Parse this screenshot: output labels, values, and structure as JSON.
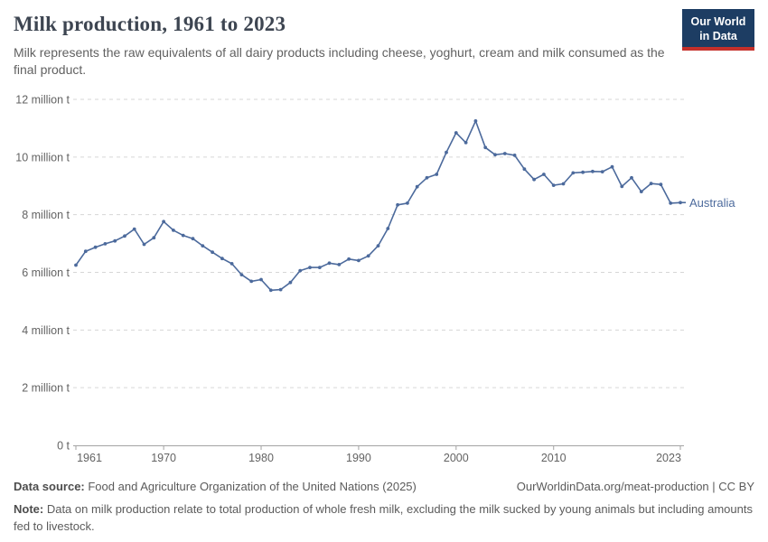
{
  "header": {
    "title": "Milk production, 1961 to 2023",
    "subtitle": "Milk represents the raw equivalents of all dairy products including cheese, yoghurt, cream and milk consumed as the final product.",
    "logo": {
      "line1": "Our World",
      "line2": "in Data"
    }
  },
  "chart_data": {
    "type": "line",
    "title": "Milk production, 1961 to 2023",
    "entity_label": "Australia",
    "unit": "million t",
    "xlim": [
      1961,
      2023
    ],
    "ylim": [
      0,
      12
    ],
    "grid": "horizontal-dashed",
    "legend_position": "end-of-line",
    "x_ticks": [
      1961,
      1970,
      1980,
      1990,
      2000,
      2010,
      2023
    ],
    "y_ticks": [
      {
        "value": 0,
        "label": "0 t"
      },
      {
        "value": 2,
        "label": "2 million t"
      },
      {
        "value": 4,
        "label": "4 million t"
      },
      {
        "value": 6,
        "label": "6 million t"
      },
      {
        "value": 8,
        "label": "8 million t"
      },
      {
        "value": 10,
        "label": "10 million t"
      },
      {
        "value": 12,
        "label": "12 million t"
      }
    ],
    "series": [
      {
        "name": "Australia",
        "color": "#4C6A9C",
        "x": [
          1961,
          1962,
          1963,
          1964,
          1965,
          1966,
          1967,
          1968,
          1969,
          1970,
          1971,
          1972,
          1973,
          1974,
          1975,
          1976,
          1977,
          1978,
          1979,
          1980,
          1981,
          1982,
          1983,
          1984,
          1985,
          1986,
          1987,
          1988,
          1989,
          1990,
          1991,
          1992,
          1993,
          1994,
          1995,
          1996,
          1997,
          1998,
          1999,
          2000,
          2001,
          2002,
          2003,
          2004,
          2005,
          2006,
          2007,
          2008,
          2009,
          2010,
          2011,
          2012,
          2013,
          2014,
          2015,
          2016,
          2017,
          2018,
          2019,
          2020,
          2021,
          2022,
          2023
        ],
        "values": [
          6.25,
          6.73,
          6.87,
          6.99,
          7.09,
          7.26,
          7.5,
          6.97,
          7.2,
          7.76,
          7.46,
          7.28,
          7.17,
          6.92,
          6.7,
          6.48,
          6.3,
          5.92,
          5.69,
          5.75,
          5.38,
          5.4,
          5.65,
          6.06,
          6.17,
          6.17,
          6.32,
          6.27,
          6.46,
          6.41,
          6.57,
          6.92,
          7.52,
          8.34,
          8.4,
          8.97,
          9.28,
          9.4,
          10.16,
          10.84,
          10.5,
          11.25,
          10.33,
          10.08,
          10.12,
          10.06,
          9.58,
          9.22,
          9.4,
          9.02,
          9.07,
          9.45,
          9.47,
          9.5,
          9.49,
          9.66,
          8.98,
          9.28,
          8.8,
          9.08,
          9.05,
          8.4,
          8.42
        ]
      }
    ]
  },
  "footer": {
    "source_label": "Data source:",
    "source_text": " Food and Agriculture Organization of the United Nations (2025)",
    "meta_right": "OurWorldinData.org/meat-production | CC BY",
    "note_label": "Note:",
    "note_text": " Data on milk production relate to total production of whole fresh milk, excluding the milk sucked by young animals but including amounts fed to livestock."
  },
  "colors": {
    "line": "#4C6A9C",
    "grid": "#d6d6d6",
    "axis": "#a3a3a3",
    "tick_label": "#636363",
    "title": "#3d4551",
    "subtitle": "#616161",
    "footer": "#5b5b5b",
    "logo_bg": "#1d3d63",
    "logo_red": "#c5302b"
  }
}
